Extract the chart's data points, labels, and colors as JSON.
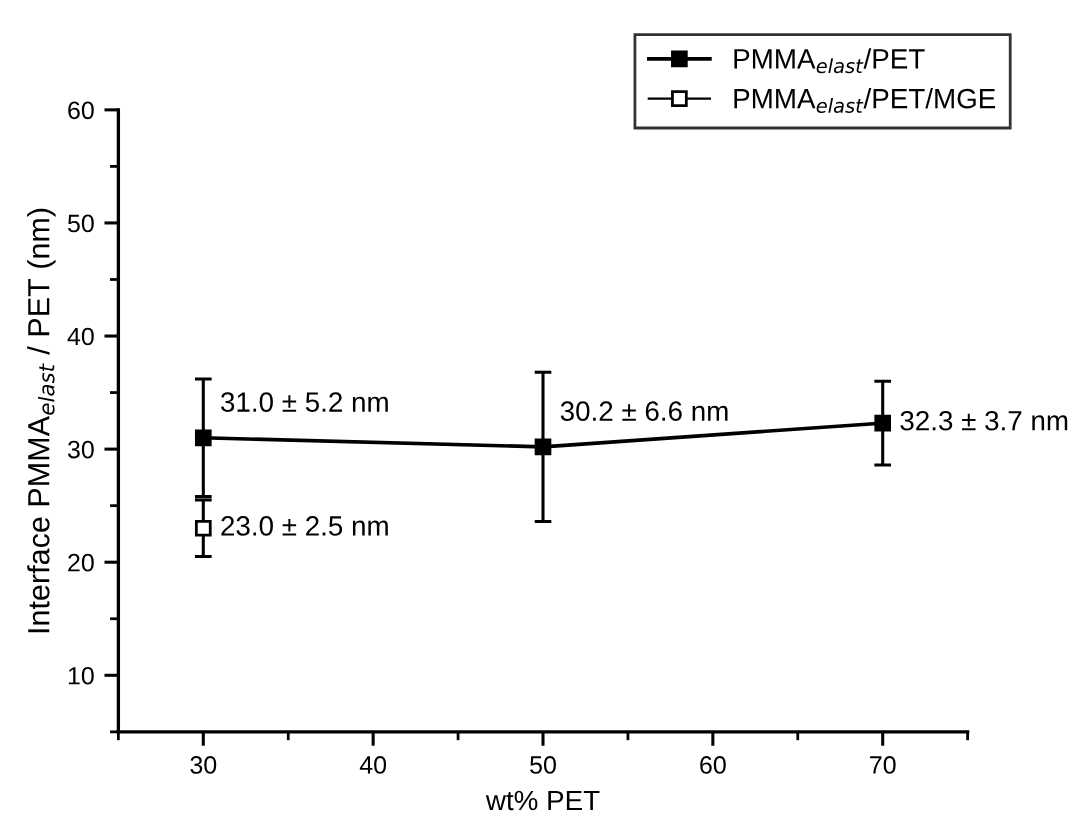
{
  "chart_data": {
    "type": "line",
    "xlabel": "wt% PET",
    "ylabel": "Interface PMMA$_{elast}$ / PET (nm)",
    "xlim": [
      25,
      75
    ],
    "xticks": [
      30,
      40,
      50,
      60,
      70
    ],
    "ylim": [
      5,
      60
    ],
    "yticks": [
      10,
      20,
      30,
      40,
      50,
      60
    ],
    "grid": false,
    "legend": "top right",
    "marker": "square",
    "line_style": "solid",
    "series": [
      {
        "name": "PMMA$_{elast}$/PET",
        "color": "#000000",
        "x": [
          30,
          50,
          70
        ],
        "values": [
          31.0,
          30.2,
          32.3
        ],
        "errors": [
          5.2,
          6.6,
          3.7
        ]
      },
      {
        "name": "PMMA$_{elast}$/PET/MGE",
        "color": "#000000",
        "x": [
          30
        ],
        "values": [
          23.0
        ],
        "errors": [
          2.5
        ]
      }
    ],
    "annotations": [
      {
        "text": "31.0 ± 5.2 nm",
        "x": 30,
        "y": 31.0
      },
      {
        "text": "30.2 ± 6.6 nm",
        "x": 50,
        "y": 30.2
      },
      {
        "text": "32.3 ± 3.7 nm",
        "x": 70,
        "y": 32.3
      },
      {
        "text": "23.0 ± 2.5 nm",
        "x": 30,
        "y": 23.0
      }
    ]
  }
}
